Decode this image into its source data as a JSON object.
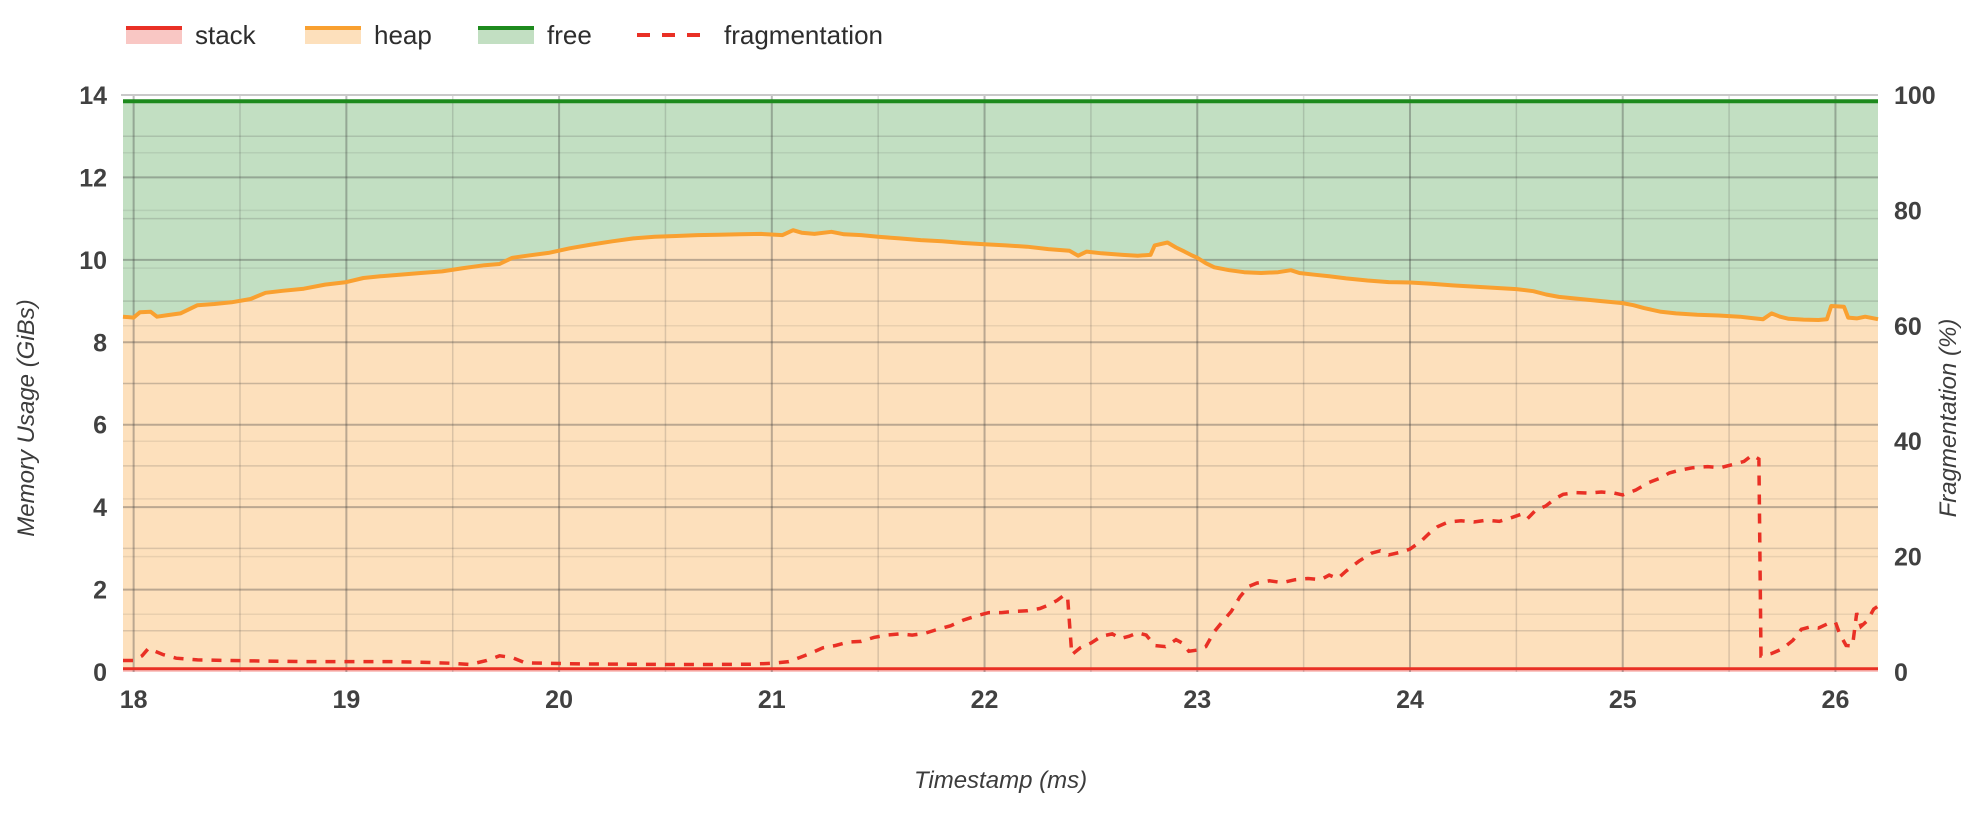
{
  "chart": {
    "legend": [
      {
        "id": "stack",
        "label": "stack",
        "line_color": "#e93025",
        "fill_color": "rgba(233,48,37,0.27)",
        "style": "area"
      },
      {
        "id": "heap",
        "label": "heap",
        "line_color": "#f9a030",
        "fill_color": "rgba(249,160,48,0.32)",
        "style": "area"
      },
      {
        "id": "free",
        "label": "free",
        "line_color": "#1d8a1d",
        "fill_color": "rgba(29,138,29,0.27)",
        "style": "area"
      },
      {
        "id": "fragmentation",
        "label": "fragmentation",
        "line_color": "#e93025",
        "style": "dashed"
      }
    ],
    "grid": {
      "minor_color": "rgba(60,60,60,0.18)",
      "major_color": "rgba(60,60,60,0.34)",
      "pct_color": "rgba(60,60,60,0.10)",
      "top_line_color": "#c9c9c9"
    }
  },
  "chart_data": {
    "type": "area",
    "x_axis": {
      "label": "Timestamp (ms)",
      "range": [
        17.95,
        26.2
      ],
      "ticks": [
        18,
        19,
        20,
        21,
        22,
        23,
        24,
        25,
        26
      ],
      "minor_step": 0.5
    },
    "y_left": {
      "label": "Memory Usage (GiBs)",
      "range": [
        0,
        14
      ],
      "ticks": [
        0,
        2,
        4,
        6,
        8,
        10,
        12,
        14
      ],
      "minor_step": 1
    },
    "y_right": {
      "label": "Fragmentation (%)",
      "range": [
        0,
        100
      ],
      "ticks": [
        0,
        20,
        40,
        60,
        80,
        100
      ],
      "grid_step": 10
    },
    "series": [
      {
        "name": "stack",
        "axis": "left",
        "render": "area",
        "points": [
          [
            17.95,
            0.08
          ],
          [
            26.2,
            0.08
          ]
        ]
      },
      {
        "name": "heap",
        "axis": "left",
        "render": "area",
        "points": [
          [
            17.95,
            8.62
          ],
          [
            18.0,
            8.6
          ],
          [
            18.03,
            8.73
          ],
          [
            18.08,
            8.74
          ],
          [
            18.11,
            8.62
          ],
          [
            18.16,
            8.66
          ],
          [
            18.22,
            8.7
          ],
          [
            18.3,
            8.9
          ],
          [
            18.38,
            8.93
          ],
          [
            18.46,
            8.97
          ],
          [
            18.55,
            9.05
          ],
          [
            18.62,
            9.2
          ],
          [
            18.7,
            9.25
          ],
          [
            18.8,
            9.3
          ],
          [
            18.9,
            9.4
          ],
          [
            19.0,
            9.46
          ],
          [
            19.08,
            9.56
          ],
          [
            19.16,
            9.6
          ],
          [
            19.25,
            9.64
          ],
          [
            19.35,
            9.68
          ],
          [
            19.45,
            9.72
          ],
          [
            19.55,
            9.8
          ],
          [
            19.65,
            9.87
          ],
          [
            19.72,
            9.9
          ],
          [
            19.78,
            10.05
          ],
          [
            19.85,
            10.1
          ],
          [
            19.95,
            10.17
          ],
          [
            20.05,
            10.28
          ],
          [
            20.15,
            10.37
          ],
          [
            20.25,
            10.45
          ],
          [
            20.35,
            10.52
          ],
          [
            20.45,
            10.56
          ],
          [
            20.55,
            10.58
          ],
          [
            20.65,
            10.6
          ],
          [
            20.75,
            10.61
          ],
          [
            20.85,
            10.62
          ],
          [
            20.95,
            10.63
          ],
          [
            21.05,
            10.6
          ],
          [
            21.1,
            10.72
          ],
          [
            21.14,
            10.66
          ],
          [
            21.2,
            10.63
          ],
          [
            21.28,
            10.68
          ],
          [
            21.34,
            10.62
          ],
          [
            21.42,
            10.6
          ],
          [
            21.5,
            10.56
          ],
          [
            21.6,
            10.52
          ],
          [
            21.7,
            10.48
          ],
          [
            21.8,
            10.45
          ],
          [
            21.9,
            10.41
          ],
          [
            22.0,
            10.38
          ],
          [
            22.1,
            10.35
          ],
          [
            22.2,
            10.32
          ],
          [
            22.3,
            10.26
          ],
          [
            22.4,
            10.22
          ],
          [
            22.44,
            10.1
          ],
          [
            22.48,
            10.2
          ],
          [
            22.55,
            10.16
          ],
          [
            22.65,
            10.12
          ],
          [
            22.72,
            10.1
          ],
          [
            22.78,
            10.12
          ],
          [
            22.8,
            10.35
          ],
          [
            22.86,
            10.42
          ],
          [
            22.9,
            10.3
          ],
          [
            22.94,
            10.2
          ],
          [
            22.97,
            10.12
          ],
          [
            23.0,
            10.05
          ],
          [
            23.04,
            9.92
          ],
          [
            23.08,
            9.82
          ],
          [
            23.15,
            9.75
          ],
          [
            23.22,
            9.7
          ],
          [
            23.3,
            9.68
          ],
          [
            23.38,
            9.7
          ],
          [
            23.44,
            9.75
          ],
          [
            23.48,
            9.68
          ],
          [
            23.55,
            9.64
          ],
          [
            23.62,
            9.6
          ],
          [
            23.7,
            9.55
          ],
          [
            23.8,
            9.5
          ],
          [
            23.9,
            9.46
          ],
          [
            24.0,
            9.45
          ],
          [
            24.1,
            9.42
          ],
          [
            24.2,
            9.38
          ],
          [
            24.3,
            9.35
          ],
          [
            24.4,
            9.32
          ],
          [
            24.5,
            9.29
          ],
          [
            24.58,
            9.24
          ],
          [
            24.64,
            9.16
          ],
          [
            24.7,
            9.1
          ],
          [
            24.8,
            9.05
          ],
          [
            24.9,
            9.0
          ],
          [
            25.0,
            8.95
          ],
          [
            25.05,
            8.9
          ],
          [
            25.1,
            8.83
          ],
          [
            25.18,
            8.74
          ],
          [
            25.25,
            8.7
          ],
          [
            25.35,
            8.67
          ],
          [
            25.45,
            8.65
          ],
          [
            25.55,
            8.62
          ],
          [
            25.62,
            8.58
          ],
          [
            25.66,
            8.56
          ],
          [
            25.7,
            8.7
          ],
          [
            25.74,
            8.62
          ],
          [
            25.78,
            8.57
          ],
          [
            25.85,
            8.55
          ],
          [
            25.92,
            8.54
          ],
          [
            25.96,
            8.56
          ],
          [
            25.98,
            8.88
          ],
          [
            26.04,
            8.86
          ],
          [
            26.06,
            8.6
          ],
          [
            26.1,
            8.58
          ],
          [
            26.14,
            8.62
          ],
          [
            26.2,
            8.56
          ]
        ]
      },
      {
        "name": "free",
        "axis": "left",
        "render": "area",
        "points": [
          [
            17.95,
            13.85
          ],
          [
            26.2,
            13.85
          ]
        ]
      },
      {
        "name": "fragmentation",
        "axis": "right",
        "render": "dashed-line",
        "points": [
          [
            17.95,
            2.0
          ],
          [
            18.0,
            2.0
          ],
          [
            18.04,
            2.8
          ],
          [
            18.07,
            4.1
          ],
          [
            18.1,
            3.6
          ],
          [
            18.14,
            3.0
          ],
          [
            18.2,
            2.4
          ],
          [
            18.3,
            2.1
          ],
          [
            18.45,
            2.0
          ],
          [
            18.6,
            1.9
          ],
          [
            18.8,
            1.8
          ],
          [
            19.0,
            1.8
          ],
          [
            19.2,
            1.8
          ],
          [
            19.35,
            1.7
          ],
          [
            19.5,
            1.5
          ],
          [
            19.58,
            1.3
          ],
          [
            19.66,
            2.0
          ],
          [
            19.72,
            2.8
          ],
          [
            19.78,
            2.5
          ],
          [
            19.84,
            1.6
          ],
          [
            19.95,
            1.5
          ],
          [
            20.1,
            1.4
          ],
          [
            20.3,
            1.35
          ],
          [
            20.5,
            1.3
          ],
          [
            20.7,
            1.3
          ],
          [
            20.9,
            1.35
          ],
          [
            21.0,
            1.5
          ],
          [
            21.08,
            1.8
          ],
          [
            21.13,
            2.5
          ],
          [
            21.18,
            3.2
          ],
          [
            21.24,
            4.2
          ],
          [
            21.3,
            4.6
          ],
          [
            21.36,
            5.2
          ],
          [
            21.42,
            5.3
          ],
          [
            21.48,
            6.0
          ],
          [
            21.54,
            6.4
          ],
          [
            21.6,
            6.6
          ],
          [
            21.66,
            6.4
          ],
          [
            21.72,
            6.7
          ],
          [
            21.78,
            7.4
          ],
          [
            21.84,
            8.0
          ],
          [
            21.9,
            9.0
          ],
          [
            21.96,
            9.7
          ],
          [
            22.02,
            10.3
          ],
          [
            22.08,
            10.3
          ],
          [
            22.14,
            10.5
          ],
          [
            22.2,
            10.6
          ],
          [
            22.26,
            11.0
          ],
          [
            22.3,
            11.6
          ],
          [
            22.34,
            12.4
          ],
          [
            22.37,
            13.2
          ],
          [
            22.39,
            13.2
          ],
          [
            22.41,
            3.0
          ],
          [
            22.45,
            4.2
          ],
          [
            22.5,
            5.0
          ],
          [
            22.55,
            6.2
          ],
          [
            22.6,
            6.6
          ],
          [
            22.64,
            5.8
          ],
          [
            22.68,
            6.2
          ],
          [
            22.72,
            6.8
          ],
          [
            22.76,
            6.4
          ],
          [
            22.8,
            4.6
          ],
          [
            22.85,
            4.4
          ],
          [
            22.9,
            5.6
          ],
          [
            22.93,
            5.0
          ],
          [
            22.96,
            3.6
          ],
          [
            23.0,
            3.8
          ],
          [
            23.04,
            4.4
          ],
          [
            23.08,
            7.0
          ],
          [
            23.12,
            8.8
          ],
          [
            23.16,
            10.5
          ],
          [
            23.2,
            13.0
          ],
          [
            23.24,
            14.8
          ],
          [
            23.28,
            15.4
          ],
          [
            23.34,
            15.8
          ],
          [
            23.4,
            15.5
          ],
          [
            23.46,
            16.0
          ],
          [
            23.52,
            16.2
          ],
          [
            23.58,
            16.0
          ],
          [
            23.62,
            16.8
          ],
          [
            23.66,
            16.2
          ],
          [
            23.7,
            17.5
          ],
          [
            23.76,
            19.2
          ],
          [
            23.82,
            20.6
          ],
          [
            23.86,
            21.0
          ],
          [
            23.9,
            20.3
          ],
          [
            23.96,
            20.8
          ],
          [
            24.0,
            21.3
          ],
          [
            24.05,
            22.6
          ],
          [
            24.09,
            24.0
          ],
          [
            24.13,
            25.2
          ],
          [
            24.18,
            26.0
          ],
          [
            24.24,
            26.2
          ],
          [
            24.3,
            26.0
          ],
          [
            24.36,
            26.3
          ],
          [
            24.42,
            26.1
          ],
          [
            24.48,
            26.8
          ],
          [
            24.52,
            27.3
          ],
          [
            24.55,
            26.5
          ],
          [
            24.59,
            28.0
          ],
          [
            24.64,
            28.8
          ],
          [
            24.68,
            30.0
          ],
          [
            24.72,
            30.8
          ],
          [
            24.78,
            31.1
          ],
          [
            24.84,
            31.0
          ],
          [
            24.9,
            31.2
          ],
          [
            24.96,
            31.0
          ],
          [
            25.0,
            30.7
          ],
          [
            25.06,
            31.5
          ],
          [
            25.12,
            32.8
          ],
          [
            25.17,
            33.5
          ],
          [
            25.22,
            34.5
          ],
          [
            25.27,
            35.0
          ],
          [
            25.33,
            35.4
          ],
          [
            25.4,
            35.6
          ],
          [
            25.46,
            35.4
          ],
          [
            25.52,
            36.0
          ],
          [
            25.57,
            36.5
          ],
          [
            25.61,
            37.6
          ],
          [
            25.64,
            36.9
          ],
          [
            25.65,
            2.8
          ],
          [
            25.7,
            3.2
          ],
          [
            25.75,
            4.0
          ],
          [
            25.8,
            5.5
          ],
          [
            25.84,
            7.4
          ],
          [
            25.88,
            7.8
          ],
          [
            25.92,
            7.6
          ],
          [
            25.96,
            8.3
          ],
          [
            26.0,
            8.6
          ],
          [
            26.02,
            6.6
          ],
          [
            26.05,
            4.6
          ],
          [
            26.08,
            4.5
          ],
          [
            26.1,
            10.2
          ],
          [
            26.12,
            7.9
          ],
          [
            26.15,
            8.9
          ],
          [
            26.18,
            10.9
          ],
          [
            26.2,
            11.4
          ]
        ]
      }
    ]
  }
}
